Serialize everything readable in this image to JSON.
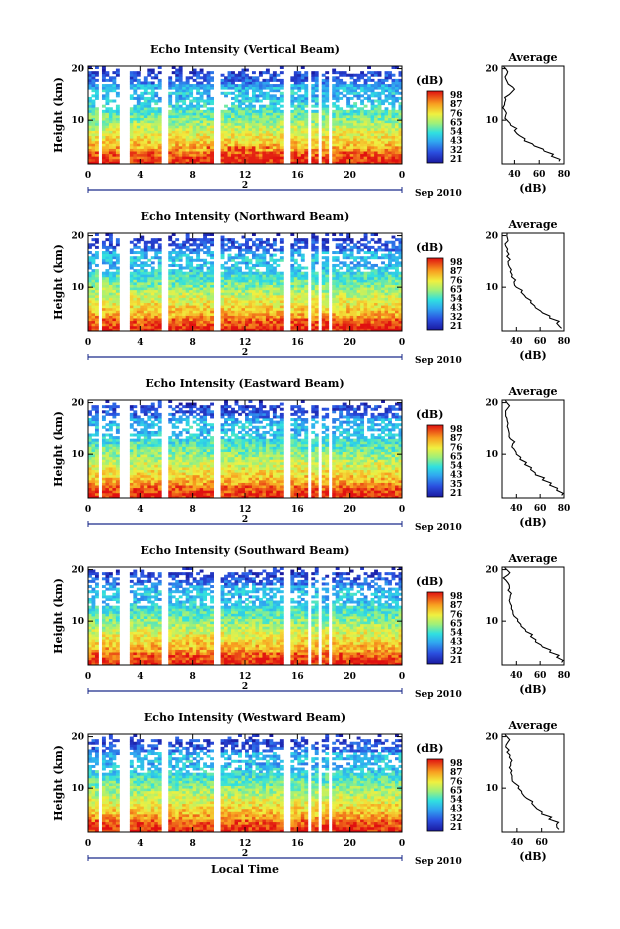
{
  "chart_data": [
    {
      "type": "heatmap",
      "title": "Echo Intensity (Vertical Beam)",
      "ylabel": "Height (km)",
      "x_ticks": [
        "0",
        "4",
        "8",
        "12",
        "16",
        "20",
        "0"
      ],
      "xlim": [
        0,
        24
      ],
      "y_ticks": [
        "20",
        "10"
      ],
      "ylim": [
        1.5,
        20.5
      ],
      "date_marker": "2",
      "date_label": "Sep 2010",
      "colorbar": {
        "unit": "(dB)",
        "ticks": [
          "98",
          "87",
          "76",
          "65",
          "54",
          "43",
          "32",
          "21"
        ]
      },
      "gaps_hours": [
        [
          0.9,
          1.2
        ],
        [
          2.3,
          3.2
        ],
        [
          5.6,
          6.2
        ],
        [
          9.6,
          10.0
        ],
        [
          14.9,
          15.6
        ],
        [
          16.7,
          17.0
        ],
        [
          17.5,
          17.9
        ],
        [
          18.4,
          18.7
        ]
      ],
      "cloud_band_km": [
        12,
        16
      ],
      "average": {
        "title": "Average",
        "xlabel": "(dB)",
        "x_ticks": [
          "40",
          "60",
          "80"
        ],
        "xlim": [
          30,
          80
        ],
        "y_ticks": [
          "20",
          "10"
        ],
        "profile": [
          [
            2,
            76
          ],
          [
            3,
            70
          ],
          [
            4,
            64
          ],
          [
            5,
            56
          ],
          [
            6,
            48
          ],
          [
            7,
            44
          ],
          [
            8,
            40
          ],
          [
            9,
            37
          ],
          [
            10,
            34
          ],
          [
            11,
            33
          ],
          [
            12,
            32
          ],
          [
            13,
            32
          ],
          [
            14,
            33
          ],
          [
            15,
            36
          ],
          [
            16,
            40
          ],
          [
            17,
            35
          ],
          [
            18,
            33
          ],
          [
            19,
            34
          ],
          [
            20,
            33
          ]
        ]
      }
    },
    {
      "type": "heatmap",
      "title": "Echo Intensity (Northward Beam)",
      "ylabel": "Height (km)",
      "x_ticks": [
        "0",
        "4",
        "8",
        "12",
        "16",
        "20",
        "0"
      ],
      "xlim": [
        0,
        24
      ],
      "y_ticks": [
        "20",
        "10"
      ],
      "ylim": [
        1.5,
        20.5
      ],
      "date_marker": "2",
      "date_label": "Sep 2010",
      "colorbar": {
        "unit": "(dB)",
        "ticks": [
          "98",
          "87",
          "76",
          "65",
          "54",
          "43",
          "32",
          "21"
        ]
      },
      "gaps_hours": [
        [
          0.9,
          1.2
        ],
        [
          2.3,
          3.2
        ],
        [
          5.6,
          6.2
        ],
        [
          9.6,
          10.0
        ],
        [
          14.9,
          15.6
        ],
        [
          16.7,
          17.0
        ],
        [
          17.5,
          17.9
        ],
        [
          18.4,
          18.7
        ]
      ],
      "cloud_band_km": [
        13,
        17
      ],
      "average": {
        "title": "Average",
        "xlabel": "(dB)",
        "x_ticks": [
          "40",
          "60",
          "80"
        ],
        "xlim": [
          28,
          80
        ],
        "y_ticks": [
          "20",
          "10"
        ],
        "profile": [
          [
            2,
            78
          ],
          [
            3,
            74
          ],
          [
            4,
            68
          ],
          [
            5,
            62
          ],
          [
            6,
            56
          ],
          [
            7,
            52
          ],
          [
            8,
            48
          ],
          [
            9,
            44
          ],
          [
            10,
            40
          ],
          [
            11,
            38
          ],
          [
            12,
            36
          ],
          [
            13,
            35
          ],
          [
            14,
            34
          ],
          [
            15,
            33
          ],
          [
            16,
            32
          ],
          [
            17,
            32
          ],
          [
            18,
            31
          ],
          [
            19,
            33
          ],
          [
            20,
            32
          ]
        ]
      }
    },
    {
      "type": "heatmap",
      "title": "Echo Intensity (Eastward Beam)",
      "ylabel": "Height (km)",
      "x_ticks": [
        "0",
        "4",
        "8",
        "12",
        "16",
        "20",
        "0"
      ],
      "xlim": [
        0,
        24
      ],
      "y_ticks": [
        "20",
        "10"
      ],
      "ylim": [
        1.5,
        20.5
      ],
      "date_marker": "2",
      "date_label": "Sep 2010",
      "colorbar": {
        "unit": "(dB)",
        "ticks": [
          "98",
          "87",
          "76",
          "65",
          "54",
          "43",
          "35",
          "21"
        ]
      },
      "gaps_hours": [
        [
          0.9,
          1.2
        ],
        [
          2.3,
          3.2
        ],
        [
          5.6,
          6.2
        ],
        [
          9.6,
          10.0
        ],
        [
          14.9,
          15.6
        ],
        [
          16.7,
          17.0
        ],
        [
          17.5,
          17.9
        ],
        [
          18.4,
          18.7
        ]
      ],
      "cloud_band_km": [
        13,
        17
      ],
      "average": {
        "title": "Average",
        "xlabel": "(dB)",
        "x_ticks": [
          "40",
          "60",
          "80"
        ],
        "xlim": [
          28,
          80
        ],
        "y_ticks": [
          "20",
          "10"
        ],
        "profile": [
          [
            2,
            78
          ],
          [
            3,
            74
          ],
          [
            4,
            68
          ],
          [
            5,
            62
          ],
          [
            6,
            56
          ],
          [
            7,
            52
          ],
          [
            8,
            47
          ],
          [
            9,
            43
          ],
          [
            10,
            40
          ],
          [
            11,
            38
          ],
          [
            12,
            37
          ],
          [
            13,
            35
          ],
          [
            14,
            34
          ],
          [
            15,
            33
          ],
          [
            16,
            33
          ],
          [
            17,
            32
          ],
          [
            18,
            31
          ],
          [
            19,
            33
          ],
          [
            20,
            32
          ]
        ]
      }
    },
    {
      "type": "heatmap",
      "title": "Echo Intensity (Southward Beam)",
      "ylabel": "Height (km)",
      "x_ticks": [
        "0",
        "4",
        "8",
        "12",
        "16",
        "20",
        "0"
      ],
      "xlim": [
        0,
        24
      ],
      "y_ticks": [
        "20",
        "10"
      ],
      "ylim": [
        1.5,
        20.5
      ],
      "date_marker": "2",
      "date_label": "Sep 2010",
      "colorbar": {
        "unit": "(dB)",
        "ticks": [
          "98",
          "87",
          "76",
          "65",
          "54",
          "43",
          "32",
          "21"
        ]
      },
      "gaps_hours": [
        [
          0.9,
          1.2
        ],
        [
          2.3,
          3.2
        ],
        [
          5.6,
          6.2
        ],
        [
          9.6,
          10.0
        ],
        [
          14.9,
          15.6
        ],
        [
          16.7,
          17.0
        ],
        [
          17.5,
          17.9
        ],
        [
          18.4,
          18.7
        ]
      ],
      "cloud_band_km": [
        13,
        17
      ],
      "average": {
        "title": "Average",
        "xlabel": "(dB)",
        "x_ticks": [
          "40",
          "60",
          "80"
        ],
        "xlim": [
          28,
          80
        ],
        "y_ticks": [
          "20",
          "10"
        ],
        "profile": [
          [
            2,
            78
          ],
          [
            3,
            74
          ],
          [
            4,
            68
          ],
          [
            5,
            62
          ],
          [
            6,
            56
          ],
          [
            7,
            52
          ],
          [
            8,
            48
          ],
          [
            9,
            44
          ],
          [
            10,
            41
          ],
          [
            11,
            38
          ],
          [
            12,
            37
          ],
          [
            13,
            36
          ],
          [
            14,
            34
          ],
          [
            15,
            35
          ],
          [
            16,
            33
          ],
          [
            17,
            34
          ],
          [
            18,
            31
          ],
          [
            19,
            33
          ],
          [
            20,
            32
          ]
        ]
      }
    },
    {
      "type": "heatmap",
      "title": "Echo Intensity (Westward Beam)",
      "ylabel": "Height (km)",
      "x_ticks": [
        "0",
        "4",
        "8",
        "12",
        "16",
        "20",
        "0"
      ],
      "xlim": [
        0,
        24
      ],
      "y_ticks": [
        "20",
        "10"
      ],
      "ylim": [
        1.5,
        20.5
      ],
      "date_marker": "2",
      "date_label": "Sep 2010",
      "xlabel": "Local Time",
      "colorbar": {
        "unit": "(dB)",
        "ticks": [
          "98",
          "87",
          "76",
          "65",
          "54",
          "43",
          "32",
          "21"
        ]
      },
      "gaps_hours": [
        [
          0.9,
          1.2
        ],
        [
          2.3,
          3.2
        ],
        [
          5.6,
          6.2
        ],
        [
          9.6,
          10.0
        ],
        [
          14.9,
          15.6
        ],
        [
          16.7,
          17.0
        ],
        [
          17.5,
          17.9
        ],
        [
          18.4,
          18.7
        ]
      ],
      "cloud_band_km": [
        13,
        17
      ],
      "average": {
        "title": "Average",
        "xlabel": "(dB)",
        "x_ticks": [
          "40",
          "60"
        ],
        "xlim": [
          28,
          78
        ],
        "y_ticks": [
          "20",
          "10"
        ],
        "profile": [
          [
            2,
            74
          ],
          [
            3,
            72
          ],
          [
            4,
            66
          ],
          [
            5,
            60
          ],
          [
            6,
            56
          ],
          [
            7,
            52
          ],
          [
            8,
            48
          ],
          [
            9,
            44
          ],
          [
            10,
            41
          ],
          [
            11,
            38
          ],
          [
            12,
            36
          ],
          [
            13,
            35
          ],
          [
            14,
            34
          ],
          [
            15,
            35
          ],
          [
            16,
            34
          ],
          [
            17,
            32
          ],
          [
            18,
            31
          ],
          [
            19,
            33
          ],
          [
            20,
            32
          ]
        ]
      }
    }
  ]
}
